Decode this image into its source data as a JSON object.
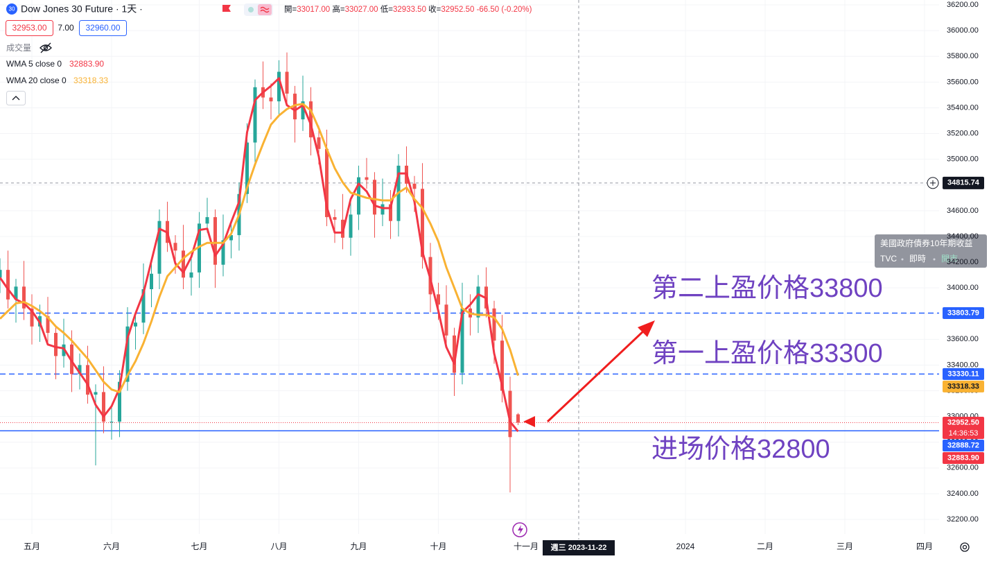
{
  "header": {
    "badge": "30",
    "title": "Dow Jones 30 Future · 1天 ·",
    "ohlc": [
      {
        "label": "開=",
        "value": "33017.00"
      },
      {
        "label": "高=",
        "value": "33027.00"
      },
      {
        "label": "低=",
        "value": "32933.50"
      },
      {
        "label": "收=",
        "value": "32952.50"
      }
    ],
    "change": "-66.50 (-0.20%)",
    "bid": "32953.00",
    "spread": "7.00",
    "ask": "32960.00",
    "volume": "成交量"
  },
  "tooltip": {
    "title": "美國政府債券10年期收益",
    "source": "TVC",
    "status": "即時",
    "market": "開市"
  },
  "chart_data": {
    "type": "candlestick",
    "categories": [
      null,
      null,
      null,
      null,
      "五月",
      null,
      null,
      null,
      null,
      null,
      null,
      null,
      null,
      null,
      "六月",
      null,
      null,
      null,
      null,
      null,
      null,
      null,
      null,
      null,
      null,
      "七月",
      null,
      null,
      null,
      null,
      null,
      null,
      null,
      null,
      null,
      "八月",
      null,
      null,
      null,
      null,
      null,
      null,
      null,
      null,
      null,
      "九月",
      null,
      null,
      null,
      null,
      null,
      null,
      null,
      null,
      null,
      "十月",
      null,
      null,
      null,
      null,
      null,
      null,
      null,
      null,
      null,
      null,
      "十一月",
      null,
      null,
      null,
      null,
      null,
      null,
      null,
      null,
      null,
      null,
      null,
      null,
      null,
      null,
      null,
      null,
      null,
      null,
      null,
      "2024",
      null,
      null,
      null,
      null,
      null,
      null,
      null,
      null,
      null,
      "二月",
      null,
      null,
      null,
      null,
      null,
      null,
      null,
      null,
      null,
      "三月",
      null,
      null,
      null,
      null,
      null,
      null,
      null,
      null,
      null,
      "四月",
      null
    ],
    "open": [
      34080,
      34140,
      33910,
      34010,
      33840,
      33700,
      33780,
      33650,
      33470,
      33560,
      33330,
      33400,
      33170,
      33190,
      32960,
      32960,
      33270,
      33700,
      33730,
      33990,
      34110,
      34520,
      34350,
      34290,
      34080,
      34120,
      34500,
      34550,
      34180,
      34370,
      34410,
      34730,
      35130,
      35560,
      35480,
      35450,
      35680,
      35510,
      35310,
      35450,
      35170,
      35080,
      34550,
      34530,
      34390,
      34570,
      34860,
      34840,
      34570,
      34650,
      34520,
      34950,
      34810,
      34770,
      34240,
      33950,
      33870,
      33630,
      33340,
      33840,
      33770,
      34010,
      33840,
      33590,
      33200,
      33017,
      null,
      null,
      null,
      null,
      null,
      null,
      null,
      null,
      null,
      null,
      null,
      null,
      null,
      null,
      null,
      null,
      null,
      null,
      null,
      null,
      null,
      null,
      null,
      null,
      null,
      null,
      null,
      null,
      null,
      null,
      null,
      null,
      null,
      null,
      null,
      null,
      null,
      null,
      null,
      null,
      null,
      null,
      null,
      null,
      null,
      null,
      null,
      null,
      null,
      null,
      null,
      null
    ],
    "high": [
      34230,
      34290,
      34070,
      34210,
      33950,
      33870,
      33930,
      33710,
      33760,
      33670,
      33490,
      33550,
      33250,
      33390,
      33070,
      33360,
      33850,
      33790,
      34190,
      34220,
      34610,
      34670,
      34410,
      34490,
      34230,
      34590,
      34700,
      34610,
      34570,
      34520,
      34820,
      35280,
      35620,
      35760,
      35590,
      35770,
      35830,
      35570,
      35650,
      35560,
      35260,
      35230,
      34610,
      34730,
      34680,
      34950,
      35010,
      34900,
      34850,
      34760,
      35040,
      35100,
      34870,
      34970,
      34350,
      34040,
      34020,
      33690,
      34040,
      33950,
      34100,
      34160,
      33900,
      33790,
      33310,
      33027,
      null,
      null,
      null,
      null,
      null,
      null,
      null,
      null,
      null,
      null,
      null,
      null,
      null,
      null,
      null,
      null,
      null,
      null,
      null,
      null,
      null,
      null,
      null,
      null,
      null,
      null,
      null,
      null,
      null,
      null,
      null,
      null,
      null,
      null,
      null,
      null,
      null,
      null,
      null,
      null,
      null,
      null,
      null,
      null,
      null,
      null,
      null,
      null,
      null,
      null,
      null,
      null
    ],
    "low": [
      33960,
      33840,
      33730,
      33750,
      33560,
      33580,
      33580,
      33290,
      33380,
      33190,
      33210,
      33100,
      32620,
      32870,
      32820,
      32840,
      33200,
      33520,
      33640,
      33850,
      33990,
      34280,
      34110,
      33990,
      33940,
      34000,
      34430,
      34000,
      34090,
      34230,
      34290,
      34660,
      34950,
      35390,
      35310,
      35330,
      35440,
      35130,
      35220,
      35030,
      34960,
      34480,
      34350,
      34300,
      34250,
      34450,
      34770,
      34390,
      34480,
      34380,
      34400,
      34740,
      34590,
      34150,
      33810,
      33750,
      33560,
      33160,
      33250,
      33630,
      33650,
      33770,
      33410,
      33110,
      32410,
      32933.5,
      null,
      null,
      null,
      null,
      null,
      null,
      null,
      null,
      null,
      null,
      null,
      null,
      null,
      null,
      null,
      null,
      null,
      null,
      null,
      null,
      null,
      null,
      null,
      null,
      null,
      null,
      null,
      null,
      null,
      null,
      null,
      null,
      null,
      null,
      null,
      null,
      null,
      null,
      null,
      null,
      null,
      null,
      null,
      null,
      null,
      null,
      null,
      null,
      null,
      null,
      null,
      null
    ],
    "close": [
      34140,
      33910,
      34010,
      33840,
      33700,
      33780,
      33650,
      33470,
      33560,
      33330,
      33400,
      33170,
      33190,
      32960,
      32960,
      33270,
      33700,
      33730,
      33990,
      34110,
      34520,
      34350,
      34290,
      34080,
      34120,
      34500,
      34550,
      34180,
      34370,
      34410,
      34730,
      35130,
      35560,
      35480,
      35450,
      35680,
      35510,
      35310,
      35450,
      35170,
      35080,
      34550,
      34530,
      34390,
      34570,
      34860,
      34840,
      34570,
      34650,
      34520,
      34950,
      34810,
      34770,
      34240,
      33950,
      33870,
      33630,
      33340,
      33840,
      33770,
      34010,
      33840,
      33590,
      33200,
      32840,
      32952.5,
      null,
      null,
      null,
      null,
      null,
      null,
      null,
      null,
      null,
      null,
      null,
      null,
      null,
      null,
      null,
      null,
      null,
      null,
      null,
      null,
      null,
      null,
      null,
      null,
      null,
      null,
      null,
      null,
      null,
      null,
      null,
      null,
      null,
      null,
      null,
      null,
      null,
      null,
      null,
      null,
      null,
      null,
      null,
      null,
      null,
      null,
      null,
      null,
      null,
      null,
      null,
      null
    ],
    "up_color": "#26a69a",
    "down_color": "#ef5350",
    "series": [
      {
        "name": "WMA 5 close 0",
        "color": "#f23645",
        "last_label": "32883.90",
        "values": [
          34080,
          33990,
          33910,
          33880,
          33820,
          33730,
          33560,
          33540,
          33530,
          33430,
          33340,
          33250,
          33090,
          33000,
          33080,
          33220,
          33610,
          33800,
          33960,
          34210,
          34460,
          34430,
          34190,
          34120,
          34240,
          34450,
          34460,
          34250,
          34340,
          34510,
          34670,
          35210,
          35460,
          35520,
          35570,
          35630,
          35420,
          35380,
          35420,
          35270,
          35020,
          34630,
          34430,
          34430,
          34690,
          34810,
          34750,
          34640,
          34620,
          34620,
          34890,
          34890,
          34670,
          34280,
          34070,
          33820,
          33540,
          33410,
          33810,
          33870,
          33950,
          33920,
          33490,
          33240,
          32960,
          32883.9,
          null,
          null,
          null,
          null,
          null,
          null,
          null,
          null,
          null,
          null,
          null,
          null,
          null,
          null,
          null,
          null,
          null,
          null,
          null,
          null,
          null,
          null,
          null,
          null,
          null,
          null,
          null,
          null,
          null,
          null,
          null,
          null,
          null,
          null,
          null,
          null,
          null,
          null,
          null,
          null,
          null,
          null,
          null,
          null,
          null,
          null,
          null,
          null,
          null,
          null,
          null,
          null
        ]
      },
      {
        "name": "WMA 20 close 0",
        "color": "#f9b233",
        "last_label": "33318.33",
        "values": [
          33760,
          33820,
          33880,
          33890,
          33860,
          33820,
          33770,
          33700,
          33650,
          33590,
          33520,
          33450,
          33360,
          33270,
          33210,
          33190,
          33320,
          33430,
          33570,
          33740,
          33930,
          34090,
          34160,
          34230,
          34280,
          34320,
          34350,
          34350,
          34350,
          34420,
          34570,
          34780,
          34960,
          35120,
          35270,
          35340,
          35390,
          35420,
          35430,
          35380,
          35240,
          35080,
          34930,
          34820,
          34740,
          34720,
          34700,
          34690,
          34680,
          34680,
          34740,
          34780,
          34690,
          34620,
          34500,
          34360,
          34160,
          34000,
          33840,
          33800,
          33790,
          33790,
          33770,
          33680,
          33520,
          33318.33,
          null,
          null,
          null,
          null,
          null,
          null,
          null,
          null,
          null,
          null,
          null,
          null,
          null,
          null,
          null,
          null,
          null,
          null,
          null,
          null,
          null,
          null,
          null,
          null,
          null,
          null,
          null,
          null,
          null,
          null,
          null,
          null,
          null,
          null,
          null,
          null,
          null,
          null,
          null,
          null,
          null,
          null,
          null,
          null,
          null,
          null,
          null,
          null,
          null,
          null,
          null,
          null
        ]
      }
    ],
    "ylim": [
      32087,
      36238
    ],
    "yticks": [
      {
        "value": 32200,
        "label": "32200.00"
      },
      {
        "value": 32400,
        "label": "32400.00"
      },
      {
        "value": 32600,
        "label": "32600.00"
      },
      {
        "value": 32800,
        "label": "32800.00"
      },
      {
        "value": 33000,
        "label": "33000.00"
      },
      {
        "value": 33200,
        "label": "33200.00"
      },
      {
        "value": 33400,
        "label": "33400.00"
      },
      {
        "value": 33600,
        "label": "33600.00"
      },
      {
        "value": 33800,
        "label": "33800.00"
      },
      {
        "value": 34000,
        "label": "34000.00"
      },
      {
        "value": 34200,
        "label": "34200.00"
      },
      {
        "value": 34400,
        "label": "34400.00"
      },
      {
        "value": 34600,
        "label": "34600.00"
      },
      {
        "value": 34800,
        "label": "34800.00"
      },
      {
        "value": 35000,
        "label": "35000.00"
      },
      {
        "value": 35200,
        "label": "35200.00"
      },
      {
        "value": 35400,
        "label": "35400.00"
      },
      {
        "value": 35600,
        "label": "35600.00"
      },
      {
        "value": 35800,
        "label": "35800.00"
      },
      {
        "value": 36000,
        "label": "36000.00"
      },
      {
        "value": 36200,
        "label": "36200.00"
      }
    ],
    "grid": true,
    "price_tags": [
      {
        "value": 33803.79,
        "label": "33803.79",
        "color": "#2962ff",
        "text_color": "#ffffff",
        "line": "dashed"
      },
      {
        "value": 33330.11,
        "label": "33330.11",
        "color": "#2962ff",
        "text_color": "#ffffff",
        "line": "dashed"
      },
      {
        "value": 33318.33,
        "label": "33318.33",
        "color": "#f9b233",
        "text_color": "#131722",
        "line": "none"
      },
      {
        "value": 32952.5,
        "label": "32952.50",
        "sub": "14:36:53",
        "color": "#f23645",
        "text_color": "#ffffff",
        "line": "dotted"
      },
      {
        "value": 32888.72,
        "label": "32888.72",
        "color": "#2962ff",
        "text_color": "#ffffff",
        "line": "solid"
      },
      {
        "value": 32883.9,
        "label": "32883.90",
        "color": "#f23645",
        "text_color": "#ffffff",
        "line": "none"
      }
    ],
    "crosshair": {
      "value": 34815.74,
      "label": "34815.74",
      "x_label": "週三 2023-11-22"
    },
    "annotations": [
      "第二上盈价格33800",
      "第一上盈价格33300",
      "进场价格32800"
    ],
    "annotation_color": "#6f42c1"
  }
}
